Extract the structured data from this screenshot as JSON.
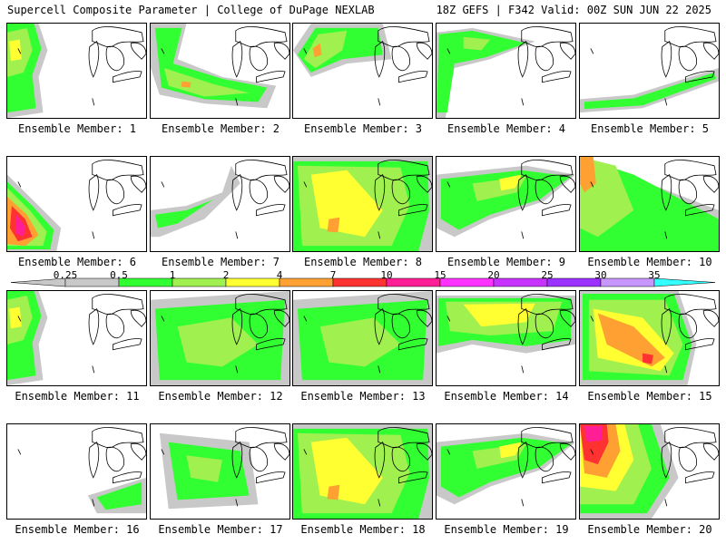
{
  "header": {
    "title_left": "Supercell Composite Parameter | College of DuPage NEXLAB",
    "title_right": "18Z GEFS | F342 Valid: 00Z SUN JUN 22 2025"
  },
  "members": [
    {
      "label": "Ensemble Member: 1",
      "coverage": "west-edge"
    },
    {
      "label": "Ensemble Member: 2",
      "coverage": "plains-band"
    },
    {
      "label": "Ensemble Member: 3",
      "coverage": "north-central"
    },
    {
      "label": "Ensemble Member: 4",
      "coverage": "north-band"
    },
    {
      "label": "Ensemble Member: 5",
      "coverage": "southeast-band"
    },
    {
      "label": "Ensemble Member: 6",
      "coverage": "southwest-max"
    },
    {
      "label": "Ensemble Member: 7",
      "coverage": "weak-sw"
    },
    {
      "label": "Ensemble Member: 8",
      "coverage": "broad-yellow"
    },
    {
      "label": "Ensemble Member: 9",
      "coverage": "central-band"
    },
    {
      "label": "Ensemble Member: 10",
      "coverage": "broad-west"
    },
    {
      "label": "Ensemble Member: 11",
      "coverage": "west-edge"
    },
    {
      "label": "Ensemble Member: 12",
      "coverage": "broad-green"
    },
    {
      "label": "Ensemble Member: 13",
      "coverage": "broad-green"
    },
    {
      "label": "Ensemble Member: 14",
      "coverage": "north-yellow"
    },
    {
      "label": "Ensemble Member: 15",
      "coverage": "orange-central"
    },
    {
      "label": "Ensemble Member: 16",
      "coverage": "weak-se"
    },
    {
      "label": "Ensemble Member: 17",
      "coverage": "central-green"
    },
    {
      "label": "Ensemble Member: 18",
      "coverage": "broad-yellow"
    },
    {
      "label": "Ensemble Member: 19",
      "coverage": "central-band"
    },
    {
      "label": "Ensemble Member: 20",
      "coverage": "red-northwest"
    }
  ],
  "colorbar": {
    "ticks": [
      "0.25",
      "0.5",
      "1",
      "2",
      "4",
      "7",
      "10",
      "15",
      "20",
      "25",
      "30",
      "35"
    ],
    "colors": [
      "#c8c8c8",
      "#32ff32",
      "#a0f050",
      "#ffff32",
      "#ffa032",
      "#ff3232",
      "#ff1e96",
      "#ff32ff",
      "#c832ff",
      "#9b32ff",
      "#c896ff",
      "#32ffff"
    ]
  }
}
